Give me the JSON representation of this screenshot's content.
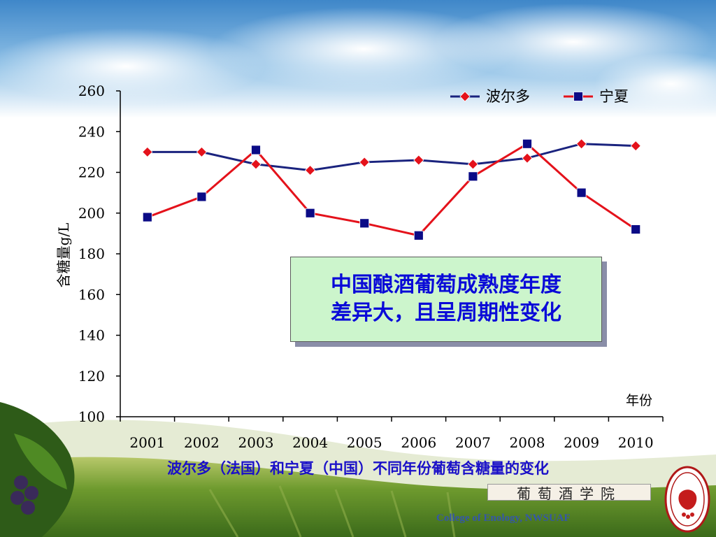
{
  "chart_data": {
    "type": "line",
    "categories": [
      "2001",
      "2002",
      "2003",
      "2004",
      "2005",
      "2006",
      "2007",
      "2008",
      "2009",
      "2010"
    ],
    "series": [
      {
        "name": "波尔多",
        "color": "#1a237e",
        "marker_color": "#e4121b",
        "marker": "diamond",
        "values": [
          230,
          230,
          224,
          221,
          225,
          226,
          224,
          227,
          234,
          233
        ]
      },
      {
        "name": "宁夏",
        "color": "#e4121b",
        "marker_color": "#0b0b86",
        "marker": "square",
        "values": [
          198,
          208,
          231,
          200,
          195,
          189,
          218,
          234,
          210,
          192
        ]
      }
    ],
    "ylim": [
      100,
      260
    ],
    "yticks": [
      "100",
      "120",
      "140",
      "160",
      "180",
      "200",
      "220",
      "240",
      "260"
    ],
    "ylabel": "含糖量g/L",
    "xlabel": "年份",
    "legend_position": "top-right",
    "grid": false
  },
  "callout": {
    "line1": "中国酿酒葡萄成熟度年度",
    "line2": "差异大，且呈周期性变化"
  },
  "caption": "波尔多（法国）和宁夏（中国）不同年份葡萄含糖量的变化",
  "logo_banner": "葡萄酒学院",
  "college_text": "College of Enology, NWSUAF",
  "seal_text": "COLLEGE OF ENOLOGY"
}
